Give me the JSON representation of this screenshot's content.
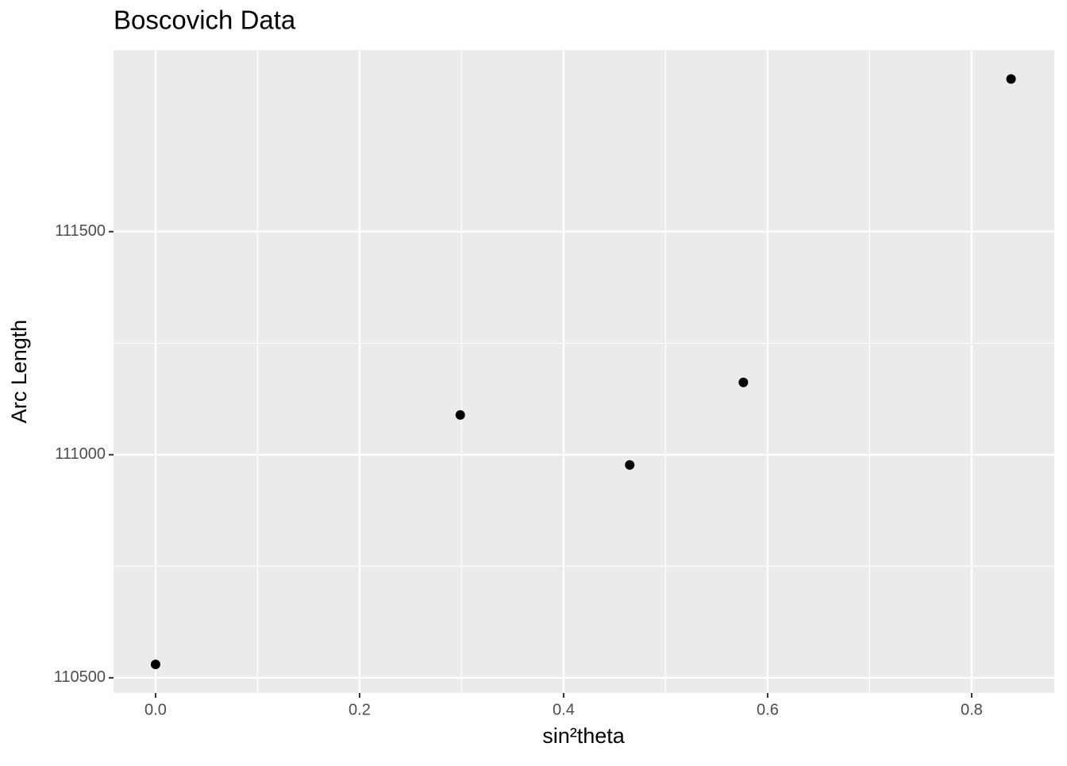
{
  "chart_data": {
    "type": "scatter",
    "title": "Boscovich Data",
    "x_label": "sin²theta",
    "y_label": "Arc Length",
    "x": [
      0,
      0.2987,
      0.4648,
      0.5762,
      0.8386
    ],
    "values": [
      110530,
      111089,
      110977,
      111162,
      111842
    ],
    "color": "#000000",
    "xlim": [
      -0.0412,
      0.881
    ],
    "ylim": [
      110466,
      111907
    ],
    "xticks": [
      {
        "value": 0,
        "label": "0.0"
      },
      0.2,
      0.4,
      0.6,
      0.8
    ],
    "yticks": [
      110500,
      111000,
      111500
    ],
    "grid": true
  }
}
